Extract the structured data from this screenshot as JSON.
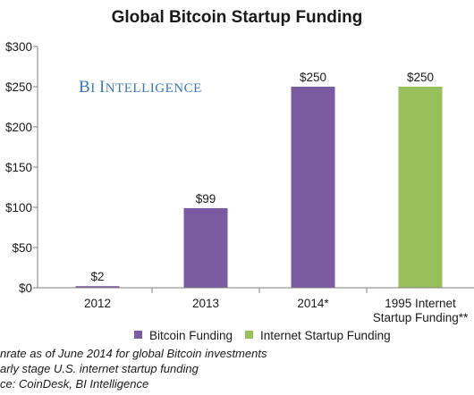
{
  "chart_data": {
    "type": "bar",
    "title": "Global Bitcoin Startup Funding",
    "watermark": "BI Intelligence",
    "categories": [
      "2012",
      "2013",
      "2014*",
      "1995 Internet\nStartup Funding**"
    ],
    "values": [
      2,
      99,
      250,
      250
    ],
    "value_labels": [
      "$2",
      "$99",
      "$250",
      "$250"
    ],
    "bar_colors": [
      "#7a5aa0",
      "#7a5aa0",
      "#7a5aa0",
      "#98c05a"
    ],
    "yticks": [
      "$0",
      "$50",
      "$100",
      "$150",
      "$200",
      "$250",
      "$300"
    ],
    "ylim": [
      0,
      300
    ],
    "grid": false,
    "legend_position": "bottom",
    "legend": [
      {
        "name": "Bitcoin Funding",
        "color": "#7a5aa0"
      },
      {
        "name": "Internet Startup Funding",
        "color": "#98c05a"
      }
    ],
    "footnotes": [
      "nrate as of June 2014 for global Bitcoin investments",
      "arly stage U.S. internet startup funding",
      "ce: CoinDesk, BI Intelligence"
    ]
  }
}
